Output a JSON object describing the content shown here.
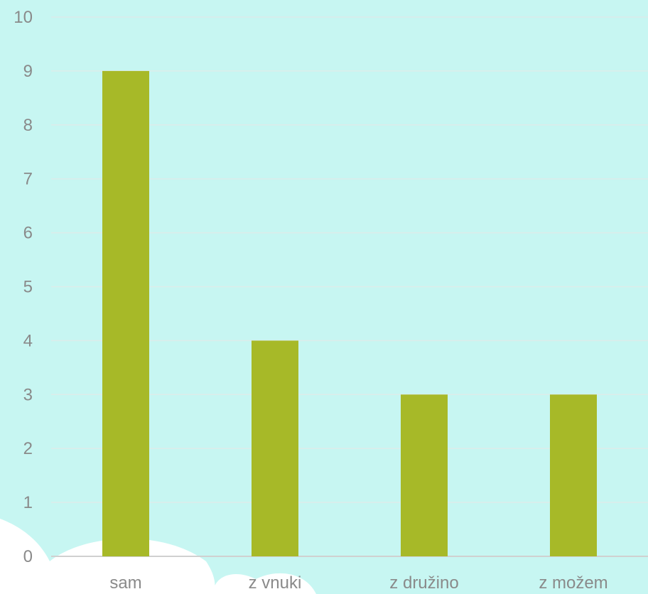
{
  "colors": {
    "background": "#c7f6f2",
    "bar": "#a7b928",
    "cloud": "#ffffff",
    "label": "#8a8a8a",
    "grid": "#dcecea"
  },
  "chart_data": {
    "type": "bar",
    "categories": [
      "sam",
      "z vnuki",
      "z družino",
      "z možem"
    ],
    "values": [
      9,
      4,
      3,
      3
    ],
    "ylim": [
      0,
      10
    ],
    "yticks": [
      0,
      1,
      2,
      3,
      4,
      5,
      6,
      7,
      8,
      9,
      10
    ],
    "grid": true,
    "legend": "none"
  }
}
